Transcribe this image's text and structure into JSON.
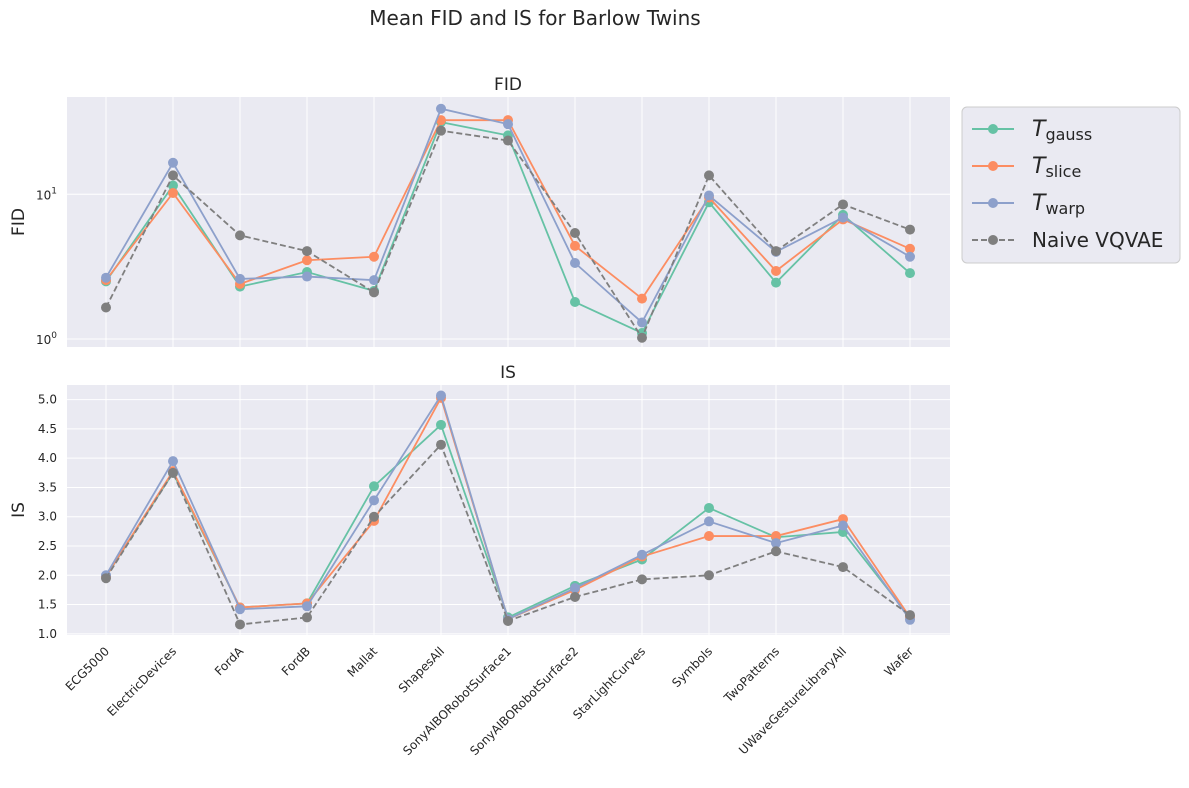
{
  "figure": {
    "title": "Mean FID and IS for Barlow Twins"
  },
  "chart_data": [
    {
      "type": "line",
      "title": "FID",
      "ylabel": "FID",
      "yscale": "log",
      "ylim": [
        0.88,
        47
      ],
      "yticks": [
        {
          "value": 1,
          "label": "10^0"
        },
        {
          "value": 10,
          "label": "10^1"
        }
      ],
      "categories": [
        "ECG5000",
        "ElectricDevices",
        "FordA",
        "FordB",
        "Mallat",
        "ShapesAll",
        "SonyAIBORobotSurface1",
        "SonyAIBORobotSurface2",
        "StarLightCurves",
        "Symbols",
        "TwoPatterns",
        "UWaveGestureLibraryAll",
        "Wafer"
      ],
      "grid": true,
      "series": [
        {
          "name": "T_gauss",
          "color": "#66c2a5",
          "dashed": false,
          "values": [
            2.5,
            11.5,
            2.3,
            2.9,
            2.15,
            31.5,
            25.5,
            1.8,
            1.1,
            8.8,
            2.45,
            7.2,
            2.85
          ]
        },
        {
          "name": "T_slice",
          "color": "#fc8d62",
          "dashed": false,
          "values": [
            2.55,
            10.2,
            2.4,
            3.5,
            3.7,
            32.5,
            32.5,
            4.4,
            1.9,
            9.5,
            2.95,
            6.7,
            4.2
          ]
        },
        {
          "name": "T_warp",
          "color": "#8da0cb",
          "dashed": false,
          "values": [
            2.65,
            16.5,
            2.6,
            2.7,
            2.55,
            39.0,
            30.5,
            3.35,
            1.3,
            9.8,
            4.0,
            6.9,
            3.7
          ]
        },
        {
          "name": "Naive VQVAE",
          "color": "#7f7f7f",
          "dashed": true,
          "values": [
            1.65,
            13.5,
            5.2,
            4.05,
            2.1,
            27.5,
            23.5,
            5.4,
            1.02,
            13.5,
            4.05,
            8.5,
            5.7
          ]
        }
      ]
    },
    {
      "type": "line",
      "title": "IS",
      "ylabel": "IS",
      "ylim": [
        0.98,
        5.25
      ],
      "yticks": [
        1.0,
        1.5,
        2.0,
        2.5,
        3.0,
        3.5,
        4.0,
        4.5,
        5.0
      ],
      "ytick_labels": [
        "1.0",
        "1.5",
        "2.0",
        "2.5",
        "3.0",
        "3.5",
        "4.0",
        "4.5",
        "5.0"
      ],
      "categories": [
        "ECG5000",
        "ElectricDevices",
        "FordA",
        "FordB",
        "Mallat",
        "ShapesAll",
        "SonyAIBORobotSurface1",
        "SonyAIBORobotSurface2",
        "StarLightCurves",
        "Symbols",
        "TwoPatterns",
        "UWaveGestureLibraryAll",
        "Wafer"
      ],
      "grid": true,
      "series": [
        {
          "name": "T_gauss",
          "color": "#66c2a5",
          "dashed": false,
          "values": [
            1.98,
            3.75,
            1.45,
            1.52,
            3.52,
            4.57,
            1.28,
            1.82,
            2.27,
            3.15,
            2.65,
            2.74,
            1.28
          ]
        },
        {
          "name": "T_slice",
          "color": "#fc8d62",
          "dashed": false,
          "values": [
            1.98,
            3.78,
            1.45,
            1.52,
            2.93,
            5.03,
            1.25,
            1.75,
            2.32,
            2.67,
            2.67,
            2.96,
            1.28
          ]
        },
        {
          "name": "T_warp",
          "color": "#8da0cb",
          "dashed": false,
          "values": [
            2.0,
            3.95,
            1.42,
            1.47,
            3.28,
            5.07,
            1.25,
            1.78,
            2.35,
            2.92,
            2.55,
            2.85,
            1.24
          ]
        },
        {
          "name": "Naive VQVAE",
          "color": "#7f7f7f",
          "dashed": true,
          "values": [
            1.95,
            3.75,
            1.16,
            1.28,
            3.0,
            4.23,
            1.22,
            1.63,
            1.93,
            2.0,
            2.41,
            2.14,
            1.32
          ]
        }
      ]
    }
  ],
  "legend": {
    "placement": "outside-right-top",
    "entries": [
      {
        "base": "T",
        "sub": "gauss",
        "color": "#66c2a5",
        "dashed": false
      },
      {
        "base": "T",
        "sub": "slice",
        "color": "#fc8d62",
        "dashed": false
      },
      {
        "base": "T",
        "sub": "warp",
        "color": "#8da0cb",
        "dashed": false
      },
      {
        "base": "Naive VQVAE",
        "sub": "",
        "color": "#7f7f7f",
        "dashed": true
      }
    ]
  },
  "style": {
    "plot_background": "#eaeaf2",
    "grid_color": "#ffffff",
    "legend_background": "#eaeaf2",
    "legend_border": "#cccccc"
  }
}
